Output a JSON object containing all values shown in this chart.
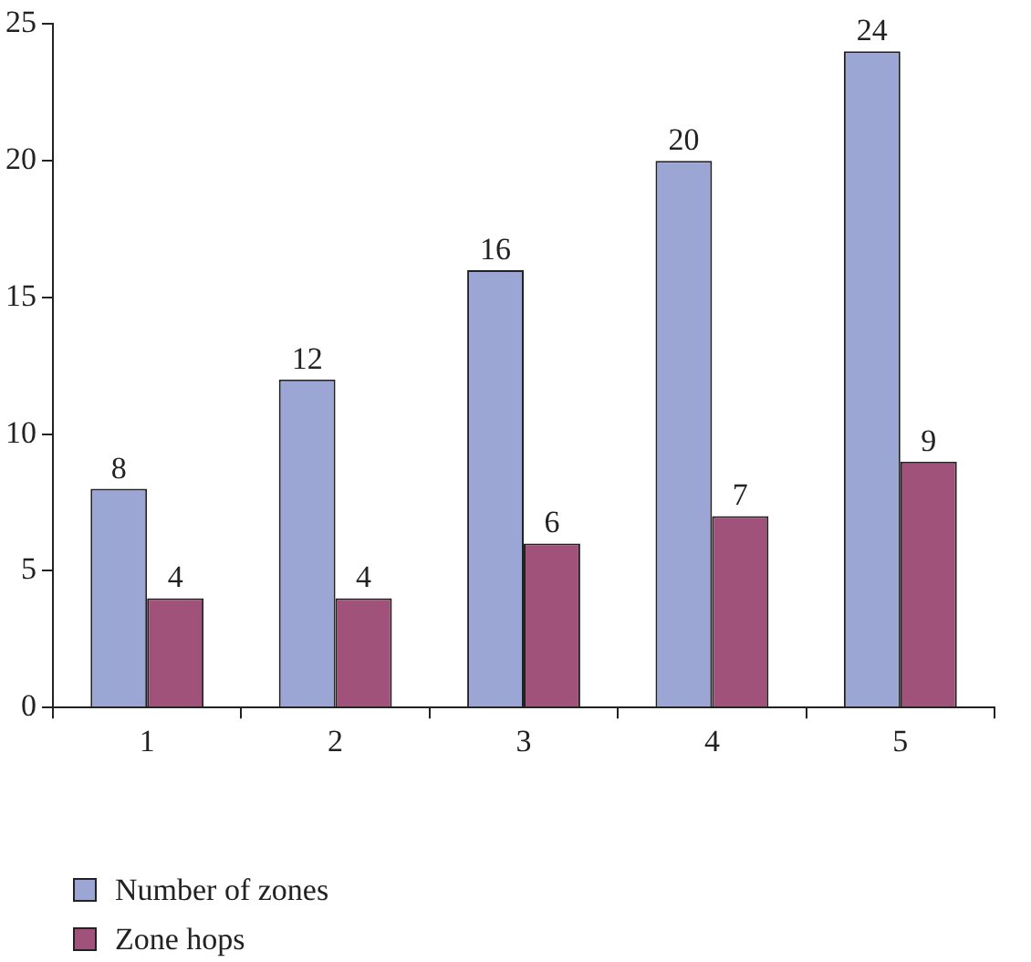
{
  "chart_data": {
    "type": "bar",
    "categories": [
      "1",
      "2",
      "3",
      "4",
      "5"
    ],
    "series": [
      {
        "name": "Number of zones",
        "color": "#9ca6d4",
        "values": [
          8,
          12,
          16,
          20,
          24
        ]
      },
      {
        "name": "Zone hops",
        "color": "#a0527a",
        "values": [
          4,
          4,
          6,
          7,
          9
        ]
      }
    ],
    "ylim": [
      0,
      25
    ],
    "yticks": [
      0,
      5,
      10,
      15,
      20,
      25
    ],
    "grid": false,
    "legend": "bottom left",
    "data_labels": true
  }
}
